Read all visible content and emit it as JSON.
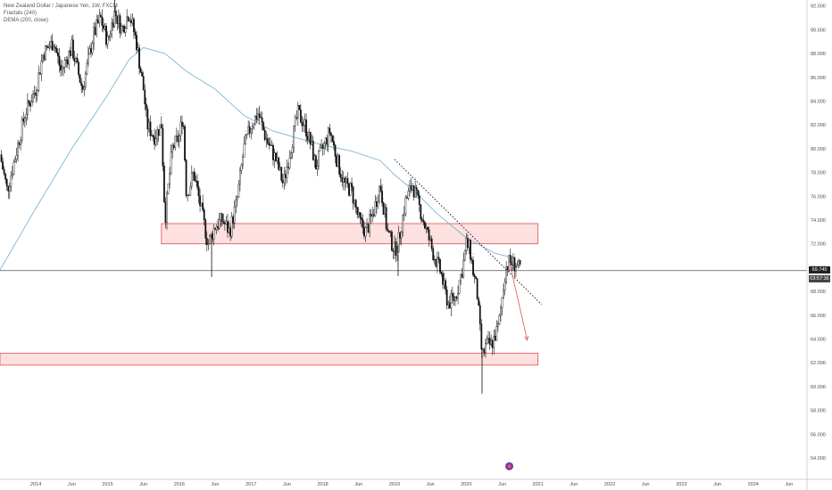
{
  "legend": {
    "symbol": "New Zealand Dollar / Japanese Yen, 1W, FXCM",
    "indicator1": "Fractals (240)",
    "indicator2": "DEMA (200, close)"
  },
  "price_label": {
    "value": "69.745",
    "timer": "03:57:36"
  },
  "colors": {
    "candle": "#111111",
    "dema": "#7fb6d6",
    "zone_fill": "#fde0e0",
    "zone_stroke": "#e05050",
    "arrow": "#e05050",
    "trend": "#222222",
    "price_line": "#555555"
  },
  "chart_data": {
    "type": "candlestick",
    "y_ticks": [
      "92.000",
      "90.000",
      "88.000",
      "86.000",
      "84.000",
      "82.000",
      "80.000",
      "78.000",
      "76.000",
      "74.000",
      "72.000",
      "70.000",
      "68.000",
      "66.000",
      "64.000",
      "62.000",
      "60.000",
      "58.000",
      "56.000",
      "54.000"
    ],
    "x_ticks": [
      "2014",
      "Jun",
      "2015",
      "Jun",
      "2016",
      "Jun",
      "2017",
      "Jun",
      "2018",
      "Jun",
      "2019",
      "Jun",
      "2020",
      "Jun",
      "2021",
      "Jun",
      "2022",
      "Jun",
      "2023",
      "Jun",
      "2024",
      "Jun"
    ],
    "ylim": [
      52.5,
      92.5
    ],
    "x_range": [
      2013.5,
      2024.75
    ],
    "current_price": 69.745,
    "price_path": [
      [
        2013.5,
        79.5
      ],
      [
        2013.6,
        76.5
      ],
      [
        2013.7,
        79
      ],
      [
        2013.85,
        83
      ],
      [
        2014.0,
        85
      ],
      [
        2014.1,
        88
      ],
      [
        2014.25,
        89
      ],
      [
        2014.35,
        86.5
      ],
      [
        2014.5,
        88.5
      ],
      [
        2014.65,
        85
      ],
      [
        2014.8,
        89.5
      ],
      [
        2014.9,
        91
      ],
      [
        2015.0,
        89
      ],
      [
        2015.1,
        91.5
      ],
      [
        2015.2,
        90
      ],
      [
        2015.3,
        91.5
      ],
      [
        2015.4,
        89
      ],
      [
        2015.5,
        85
      ],
      [
        2015.55,
        82
      ],
      [
        2015.65,
        81
      ],
      [
        2015.75,
        82
      ],
      [
        2015.8,
        74
      ],
      [
        2015.9,
        80
      ],
      [
        2016.0,
        81
      ],
      [
        2016.05,
        83
      ],
      [
        2016.1,
        76
      ],
      [
        2016.2,
        78
      ],
      [
        2016.3,
        75
      ],
      [
        2016.4,
        72
      ],
      [
        2016.5,
        73.5
      ],
      [
        2016.6,
        74
      ],
      [
        2016.7,
        73
      ],
      [
        2016.8,
        75.5
      ],
      [
        2016.9,
        80
      ],
      [
        2017.0,
        82
      ],
      [
        2017.1,
        83
      ],
      [
        2017.2,
        81
      ],
      [
        2017.35,
        79
      ],
      [
        2017.45,
        77
      ],
      [
        2017.55,
        80
      ],
      [
        2017.65,
        83
      ],
      [
        2017.75,
        82
      ],
      [
        2017.85,
        80
      ],
      [
        2017.9,
        78.5
      ],
      [
        2018.0,
        80
      ],
      [
        2018.1,
        81.5
      ],
      [
        2018.2,
        79
      ],
      [
        2018.3,
        77
      ],
      [
        2018.4,
        76.5
      ],
      [
        2018.5,
        74
      ],
      [
        2018.6,
        73
      ],
      [
        2018.7,
        74.5
      ],
      [
        2018.8,
        77
      ],
      [
        2018.9,
        73
      ],
      [
        2019.0,
        71.5
      ],
      [
        2019.05,
        72
      ],
      [
        2019.15,
        75.5
      ],
      [
        2019.25,
        77
      ],
      [
        2019.35,
        75
      ],
      [
        2019.45,
        73
      ],
      [
        2019.55,
        71
      ],
      [
        2019.65,
        69.5
      ],
      [
        2019.7,
        68
      ],
      [
        2019.75,
        67
      ],
      [
        2019.85,
        67.5
      ],
      [
        2019.95,
        70
      ],
      [
        2020.0,
        72
      ],
      [
        2020.05,
        71.5
      ],
      [
        2020.1,
        69.5
      ],
      [
        2020.15,
        68
      ],
      [
        2020.2,
        64
      ],
      [
        2020.22,
        62.5
      ],
      [
        2020.28,
        63.5
      ],
      [
        2020.35,
        63.5
      ],
      [
        2020.45,
        65
      ],
      [
        2020.5,
        67.5
      ],
      [
        2020.55,
        70
      ],
      [
        2020.6,
        70.5
      ],
      [
        2020.7,
        70.2
      ],
      [
        2020.75,
        69.745
      ]
    ],
    "extreme_wicks": [
      [
        2016.45,
        69.2
      ],
      [
        2019.05,
        69.3
      ],
      [
        2020.22,
        59.4
      ],
      [
        2015.1,
        92.5
      ]
    ],
    "dema_path": [
      [
        2013.5,
        69.8
      ],
      [
        2014.0,
        75
      ],
      [
        2014.5,
        80
      ],
      [
        2015.0,
        84.5
      ],
      [
        2015.3,
        87.5
      ],
      [
        2015.5,
        88.5
      ],
      [
        2015.8,
        88.0
      ],
      [
        2016.1,
        86.5
      ],
      [
        2016.5,
        85.0
      ],
      [
        2016.9,
        82.8
      ],
      [
        2017.3,
        81.5
      ],
      [
        2017.7,
        80.8
      ],
      [
        2018.0,
        80.3
      ],
      [
        2018.4,
        79.8
      ],
      [
        2018.8,
        79.0
      ],
      [
        2019.0,
        77.8
      ],
      [
        2019.3,
        76.3
      ],
      [
        2019.6,
        74.5
      ],
      [
        2020.0,
        72.5
      ],
      [
        2020.4,
        71.2
      ],
      [
        2020.6,
        70.9
      ]
    ],
    "zones": [
      {
        "x_start": 2015.75,
        "x_end": 2021.0,
        "y_low": 72.0,
        "y_high": 73.7
      },
      {
        "x_start": 2013.5,
        "x_end": 2021.0,
        "y_low": 61.8,
        "y_high": 62.8
      }
    ],
    "trendline": [
      [
        2019.0,
        79.1
      ],
      [
        2021.05,
        66.9
      ]
    ],
    "projection_arrow": [
      [
        2020.6,
        70.5
      ],
      [
        2020.85,
        63.9
      ]
    ],
    "fractal_marker": {
      "x": 2020.6,
      "y": 53.3
    }
  }
}
